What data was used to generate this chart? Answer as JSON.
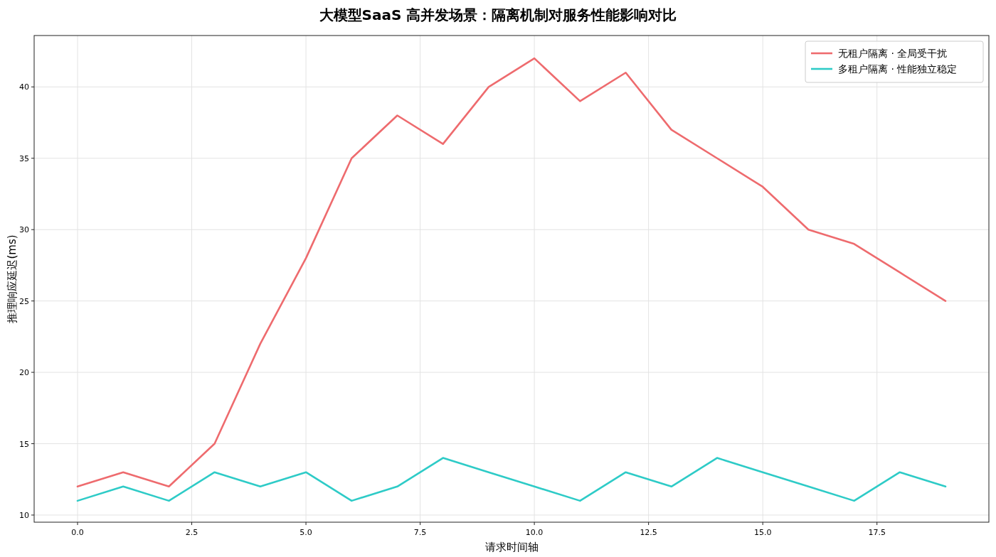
{
  "chart_data": {
    "type": "line",
    "title": "大模型SaaS 高并发场景：隔离机制对服务性能影响对比",
    "xlabel": "请求时间轴",
    "ylabel": "推理响应延迟(ms)",
    "x": [
      0,
      1,
      2,
      3,
      4,
      5,
      6,
      7,
      8,
      9,
      10,
      11,
      12,
      13,
      14,
      15,
      16,
      17,
      18,
      19
    ],
    "series": [
      {
        "name": "无租户隔离 · 全局受干扰",
        "color": "#ee6b6e",
        "values": [
          12,
          13,
          12,
          15,
          22,
          28,
          35,
          38,
          36,
          40,
          42,
          39,
          41,
          37,
          35,
          33,
          30,
          29,
          27,
          25
        ]
      },
      {
        "name": "多租户隔离 · 性能独立稳定",
        "color": "#2ecbc7",
        "values": [
          11,
          12,
          11,
          13,
          12,
          13,
          11,
          12,
          14,
          13,
          12,
          11,
          13,
          12,
          14,
          13,
          12,
          11,
          13,
          12
        ]
      }
    ],
    "xlim": [
      -0.95,
      19.95
    ],
    "ylim": [
      9.5,
      43.6
    ],
    "xticks": [
      {
        "value": 0,
        "label": "0.0"
      },
      {
        "value": 2.5,
        "label": "2.5"
      },
      {
        "value": 5,
        "label": "5.0"
      },
      {
        "value": 7.5,
        "label": "7.5"
      },
      {
        "value": 10,
        "label": "10.0"
      },
      {
        "value": 12.5,
        "label": "12.5"
      },
      {
        "value": 15,
        "label": "15.0"
      },
      {
        "value": 17.5,
        "label": "17.5"
      }
    ],
    "yticks": [
      10,
      15,
      20,
      25,
      30,
      35,
      40
    ],
    "grid": true,
    "legend": "top right",
    "line_style": "solid",
    "marker": "none"
  }
}
